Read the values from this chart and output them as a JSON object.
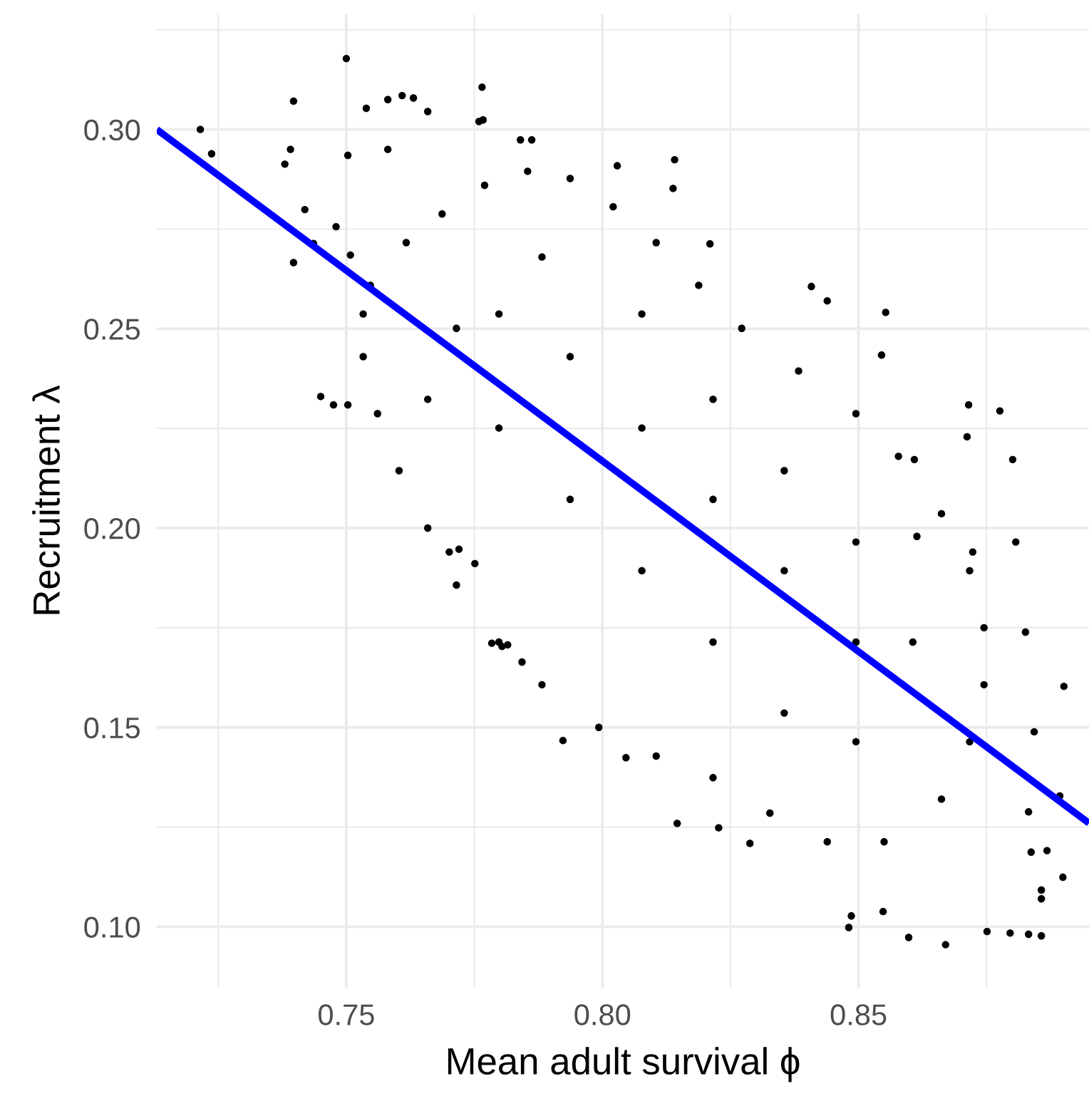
{
  "chart_data": {
    "type": "scatter",
    "xlabel": "Mean adult survival ϕ",
    "ylabel": "Recruitment λ",
    "xlim": [
      0.713,
      0.895
    ],
    "ylim": [
      0.0847,
      0.3289
    ],
    "xticks": [
      {
        "value": 0.75,
        "label": "0.75"
      },
      {
        "value": 0.8,
        "label": "0.80"
      },
      {
        "value": 0.85,
        "label": "0.85"
      }
    ],
    "yticks": [
      {
        "value": 0.1,
        "label": "0.10"
      },
      {
        "value": 0.15,
        "label": "0.15"
      },
      {
        "value": 0.2,
        "label": "0.20"
      },
      {
        "value": 0.25,
        "label": "0.25"
      },
      {
        "value": 0.3,
        "label": "0.30"
      }
    ],
    "grid": true,
    "series": [
      {
        "marker": "circle",
        "color": "#000000",
        "x": [
          0.7215,
          0.7237,
          0.7397,
          0.7391,
          0.738,
          0.75,
          0.7539,
          0.7581,
          0.7609,
          0.7631,
          0.7659,
          0.7765,
          0.7759,
          0.7767,
          0.7419,
          0.7436,
          0.7397,
          0.745,
          0.7475,
          0.7503,
          0.7503,
          0.7581,
          0.748,
          0.7508,
          0.784,
          0.7862,
          0.8029,
          0.8141,
          0.8138,
          0.821,
          0.8408,
          0.8439,
          0.8553,
          0.8545,
          0.8776,
          0.8712,
          0.8609,
          0.8715,
          0.8801,
          0.8614,
          0.8807,
          0.8723,
          0.8826,
          0.8843,
          0.8901,
          0.8893,
          0.8832,
          0.8899,
          0.8857,
          0.8857,
          0.8796,
          0.8751,
          0.867,
          0.8598,
          0.8481,
          0.8288,
          0.8227,
          0.8146,
          0.8046,
          0.7923,
          0.8486,
          0.8548,
          0.8857,
          0.8832,
          0.8868,
          0.8837,
          0.7701,
          0.772,
          0.7784,
          0.7843,
          0.7804,
          0.7815,
          0.7751,
          0.7547,
          0.7617,
          0.7687,
          0.777,
          0.7854,
          0.7937,
          0.8021,
          0.8105,
          0.8188,
          0.8272,
          0.8383,
          0.8495,
          0.8578,
          0.8662,
          0.8717,
          0.8745,
          0.8745,
          0.8717,
          0.8662,
          0.855,
          0.8439,
          0.8327,
          0.8216,
          0.8105,
          0.7993,
          0.7882,
          0.7798,
          0.7715,
          0.7659,
          0.7603,
          0.7561,
          0.7533,
          0.7533,
          0.7798,
          0.7937,
          0.8077,
          0.8216,
          0.8355,
          0.8495,
          0.7937,
          0.7798,
          0.8077,
          0.8216,
          0.8355,
          0.8495,
          0.8606,
          0.8077,
          0.8216,
          0.8355,
          0.8495,
          0.7659,
          0.7715,
          0.7882
        ],
        "values": [
          0.3,
          0.2939,
          0.3071,
          0.295,
          0.2913,
          0.3178,
          0.3053,
          0.3075,
          0.3085,
          0.3079,
          0.3045,
          0.3106,
          0.302,
          0.3024,
          0.2799,
          0.2714,
          0.2666,
          0.233,
          0.2309,
          0.2309,
          0.2935,
          0.295,
          0.2756,
          0.2685,
          0.2974,
          0.2974,
          0.2909,
          0.2924,
          0.2852,
          0.2713,
          0.2606,
          0.257,
          0.2541,
          0.2434,
          0.2294,
          0.2229,
          0.2172,
          0.2309,
          0.2172,
          0.1979,
          0.1965,
          0.194,
          0.1739,
          0.1489,
          0.1603,
          0.1328,
          0.1288,
          0.1124,
          0.107,
          0.0977,
          0.0984,
          0.0988,
          0.0955,
          0.0973,
          0.0998,
          0.1209,
          0.1248,
          0.1259,
          0.1424,
          0.1467,
          0.1027,
          0.1038,
          0.1092,
          0.0981,
          0.1191,
          0.1187,
          0.194,
          0.1947,
          0.1711,
          0.1664,
          0.1703,
          0.1707,
          0.1911,
          0.2609,
          0.2716,
          0.2788,
          0.286,
          0.2895,
          0.2877,
          0.2806,
          0.2716,
          0.2609,
          0.2501,
          0.2394,
          0.2287,
          0.218,
          0.2036,
          0.1893,
          0.175,
          0.1607,
          0.1464,
          0.132,
          0.1213,
          0.1213,
          0.1285,
          0.1374,
          0.1428,
          0.15,
          0.1607,
          0.1714,
          0.1857,
          0.2,
          0.2144,
          0.2287,
          0.243,
          0.2537,
          0.2251,
          0.243,
          0.2251,
          0.2072,
          0.1893,
          0.1714,
          0.2072,
          0.2537,
          0.2537,
          0.2323,
          0.2144,
          0.1965,
          0.1714,
          0.1893,
          0.1714,
          0.1536,
          0.1464,
          0.2323,
          0.2501,
          0.268
        ]
      },
      {
        "type": "line",
        "color": "#0000ff",
        "x": [
          0.713,
          0.895
        ],
        "values": [
          0.3,
          0.126
        ]
      }
    ]
  }
}
